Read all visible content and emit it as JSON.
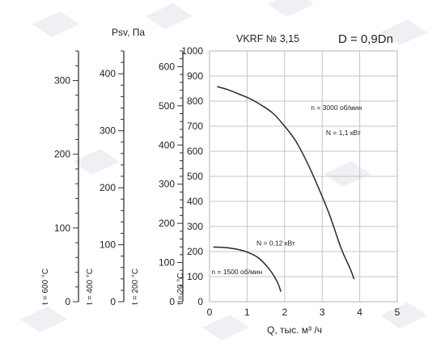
{
  "chart_data": {
    "type": "line",
    "title": "VKRF № 3,15",
    "subtitle": "D = 0,9Dn",
    "xlabel": "Q, тыс. м³ /ч",
    "ylabel": "Psv, Па",
    "xlim": [
      0,
      5
    ],
    "ylim": [
      0,
      1000
    ],
    "grid": true,
    "x_ticks": [
      "0",
      "1",
      "2",
      "3",
      "4",
      "5"
    ],
    "y_ticks": [
      "0",
      "100",
      "200",
      "300",
      "400",
      "500",
      "600",
      "700",
      "800",
      "900",
      "1000"
    ],
    "series": [
      {
        "x": [
          0.2,
          0.5,
          0.8,
          1.1,
          1.4,
          1.7,
          2.0,
          2.3,
          2.6,
          2.9,
          3.2,
          3.5,
          3.75,
          3.85
        ],
        "values": [
          858,
          845,
          827,
          808,
          782,
          750,
          700,
          640,
          555,
          455,
          345,
          215,
          130,
          90
        ]
      },
      {
        "x": [
          0.1,
          0.4,
          0.7,
          1.0,
          1.3,
          1.6,
          1.8,
          1.9
        ],
        "values": [
          218,
          216,
          210,
          198,
          175,
          128,
          80,
          40
        ]
      }
    ],
    "annotations": [
      {
        "text": "n = 3000 об/мин",
        "x": 2.7,
        "y": 765
      },
      {
        "text": "N = 1,1 кВт",
        "x": 3.1,
        "y": 665
      },
      {
        "text": "N = 0,12 кВт",
        "x": 1.25,
        "y": 225
      },
      {
        "text": "n = 1500 об/мин",
        "x": 0.05,
        "y": 110
      }
    ],
    "secondary_axes": [
      {
        "label": "t = 20 °C",
        "ticks": []
      },
      {
        "label": "t = 200 °C",
        "ticks": [
          {
            "text": "0",
            "value": 0
          },
          {
            "text": "100",
            "value": 100
          },
          {
            "text": "200",
            "value": 200
          },
          {
            "text": "300",
            "value": 300
          },
          {
            "text": "400",
            "value": 400
          },
          {
            "text": "500",
            "value": 500
          },
          {
            "text": "600",
            "value": 600
          }
        ]
      },
      {
        "label": "t = 400 °C",
        "ticks": [
          {
            "text": "0",
            "value": 0
          },
          {
            "text": "100",
            "value": 100
          },
          {
            "text": "200",
            "value": 200
          },
          {
            "text": "300",
            "value": 300
          },
          {
            "text": "400",
            "value": 400
          }
        ]
      },
      {
        "label": "t = 600 °C",
        "ticks": [
          {
            "text": "0",
            "value": 0
          },
          {
            "text": "100",
            "value": 100
          },
          {
            "text": "200",
            "value": 200
          },
          {
            "text": "300",
            "value": 300
          }
        ]
      }
    ]
  }
}
